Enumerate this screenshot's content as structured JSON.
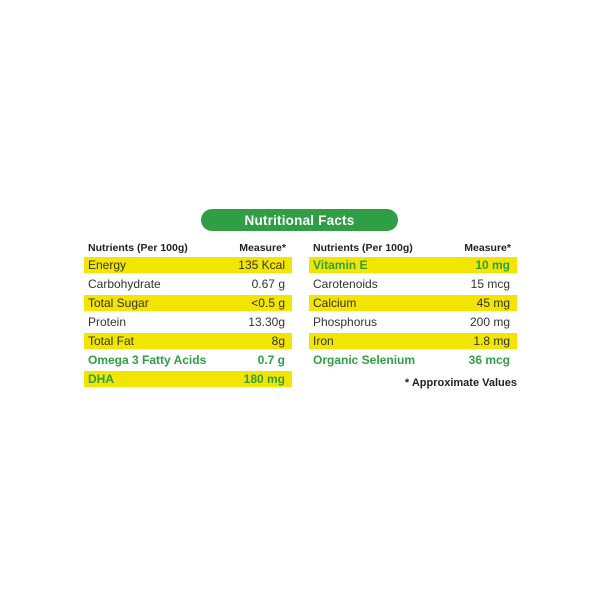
{
  "banner": {
    "title": "Nutritional Facts"
  },
  "colors": {
    "banner_green": "#2F9E44",
    "highlight_yellow": "#F2E500",
    "green_text": "#2F9E44",
    "dark_text": "#333333"
  },
  "left_table": {
    "headers": {
      "nutrients": "Nutrients (Per 100g)",
      "measure": "Measure*"
    },
    "rows": [
      {
        "label": "Energy",
        "value": "135 Kcal",
        "highlight": true,
        "green_text": false
      },
      {
        "label": "Carbohydrate",
        "value": "0.67 g",
        "highlight": false,
        "green_text": false
      },
      {
        "label": "Total Sugar",
        "value": "<0.5 g",
        "highlight": true,
        "green_text": false
      },
      {
        "label": "Protein",
        "value": "13.30g",
        "highlight": false,
        "green_text": false
      },
      {
        "label": "Total Fat",
        "value": "8g",
        "highlight": true,
        "green_text": false
      },
      {
        "label": "Omega 3 Fatty Acids",
        "value": "0.7 g",
        "highlight": false,
        "green_text": true
      },
      {
        "label": "DHA",
        "value": "180 mg",
        "highlight": true,
        "green_text": true
      }
    ]
  },
  "right_table": {
    "headers": {
      "nutrients": "Nutrients (Per 100g)",
      "measure": "Measure*"
    },
    "rows": [
      {
        "label": "Vitamin E",
        "value": "10 mg",
        "highlight": true,
        "green_text": true
      },
      {
        "label": "Carotenoids",
        "value": "15 mcg",
        "highlight": false,
        "green_text": false
      },
      {
        "label": "Calcium",
        "value": "45 mg",
        "highlight": true,
        "green_text": false
      },
      {
        "label": "Phosphorus",
        "value": "200 mg",
        "highlight": false,
        "green_text": false
      },
      {
        "label": "Iron",
        "value": "1.8 mg",
        "highlight": true,
        "green_text": false
      },
      {
        "label": "Organic Selenium",
        "value": "36 mcg",
        "highlight": false,
        "green_text": true
      }
    ],
    "footnote": "* Approximate Values"
  }
}
